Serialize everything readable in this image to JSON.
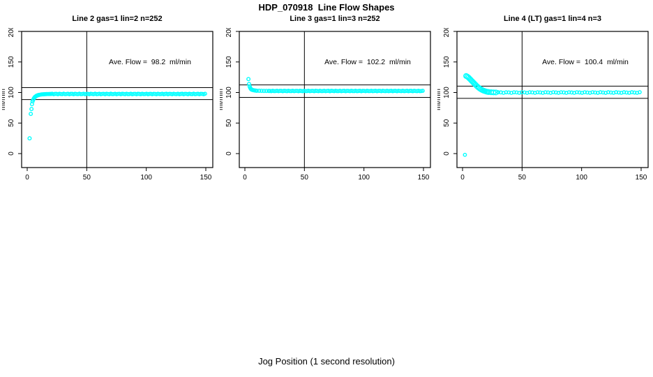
{
  "figure": {
    "title": "HDP_070918  Line Flow Shapes",
    "xlabel": "Jog Position (1 second resolution)",
    "background": "#ffffff"
  },
  "chart_data": [
    {
      "type": "scatter",
      "title": "Line 2 gas=1 lin=2 n=252",
      "annotation": "Ave. Flow =  98.2  ml/min",
      "ave_flow": 98.2,
      "n": 252,
      "ylabel": "ml/min",
      "xticks": [
        0,
        50,
        100,
        150
      ],
      "yticks": [
        0,
        50,
        100,
        150,
        200
      ],
      "xlim": [
        0,
        150
      ],
      "ylim": [
        0,
        200
      ],
      "grid": false,
      "vline_x": 50,
      "ref_lines": [
        108.0,
        88.4
      ],
      "point_color": "#00ffff",
      "transient_r": 2.3,
      "transient": [
        [
          2,
          25
        ],
        [
          3,
          65
        ],
        [
          3.6,
          73
        ],
        [
          4,
          81
        ],
        [
          4.5,
          85.5
        ],
        [
          5,
          88
        ],
        [
          5.5,
          90
        ],
        [
          6,
          91.5
        ],
        [
          6.5,
          92.7
        ],
        [
          7,
          93.5
        ],
        [
          7.5,
          94.2
        ],
        [
          8,
          94.8
        ],
        [
          8.5,
          95.2
        ],
        [
          9,
          95.6
        ],
        [
          9.5,
          95.9
        ],
        [
          10,
          96.1
        ],
        [
          11,
          96.5
        ],
        [
          12,
          96.8
        ],
        [
          13,
          97.0
        ],
        [
          14,
          97.2
        ],
        [
          15,
          97.3
        ],
        [
          16,
          97.4
        ],
        [
          17,
          97.5
        ],
        [
          18,
          97.5
        ],
        [
          19,
          97.6
        ],
        [
          20,
          97.6
        ]
      ],
      "plateau": {
        "from": 21,
        "to": 150,
        "step": 1.2,
        "y": 97.6,
        "amp": 0.45,
        "r": 2.2
      },
      "outliers": []
    },
    {
      "type": "scatter",
      "title": "Line 3 gas=1 lin=3 n=252",
      "annotation": "Ave. Flow =  102.2  ml/min",
      "ave_flow": 102.2,
      "n": 252,
      "ylabel": "ml/min",
      "xticks": [
        0,
        50,
        100,
        150
      ],
      "yticks": [
        0,
        50,
        100,
        150,
        200
      ],
      "xlim": [
        0,
        150
      ],
      "ylim": [
        0,
        200
      ],
      "grid": false,
      "vline_x": 50,
      "ref_lines": [
        112.4,
        92.0
      ],
      "point_color": "#00ffff",
      "transient_r": 2.3,
      "transient": [
        [
          3,
          122
        ],
        [
          3.5,
          114
        ],
        [
          4,
          110
        ],
        [
          4.5,
          107.5
        ],
        [
          5,
          106
        ],
        [
          5.5,
          105
        ],
        [
          6,
          104.4
        ],
        [
          7,
          103.8
        ],
        [
          8,
          103.4
        ],
        [
          9,
          103.1
        ],
        [
          10,
          102.9
        ],
        [
          12,
          102.8
        ],
        [
          14,
          102.7
        ],
        [
          16,
          102.6
        ],
        [
          18,
          102.6
        ],
        [
          20,
          102.6
        ]
      ],
      "plateau": {
        "from": 21,
        "to": 150,
        "step": 1.2,
        "y": 102.5,
        "amp": 0.4,
        "r": 2.2
      },
      "outliers": []
    },
    {
      "type": "scatter",
      "title": "Line 4 (LT) gas=1 lin=4 n=3",
      "annotation": "Ave. Flow =  100.4  ml/min",
      "ave_flow": 100.4,
      "n": 3,
      "ylabel": "ml/min",
      "xticks": [
        0,
        50,
        100,
        150
      ],
      "yticks": [
        0,
        50,
        100,
        150,
        200
      ],
      "xlim": [
        0,
        150
      ],
      "ylim": [
        0,
        200
      ],
      "grid": false,
      "vline_x": 50,
      "ref_lines": [
        110.4,
        90.4
      ],
      "point_color": "#00ffff",
      "transient_r": 3.4,
      "transient": [
        [
          3,
          127
        ],
        [
          4,
          126
        ],
        [
          5,
          124.5
        ],
        [
          6,
          122.5
        ],
        [
          7,
          120.5
        ],
        [
          8,
          118.5
        ],
        [
          9,
          116.5
        ],
        [
          10,
          114.5
        ],
        [
          11,
          112.5
        ],
        [
          12,
          110.5
        ],
        [
          13,
          108.8
        ],
        [
          14,
          107.2
        ],
        [
          15,
          105.8
        ],
        [
          16,
          104.6
        ],
        [
          17,
          103.6
        ],
        [
          18,
          102.8
        ],
        [
          19,
          102.1
        ],
        [
          20,
          101.5
        ],
        [
          21,
          101.0
        ],
        [
          22,
          100.7
        ],
        [
          24,
          100.4
        ],
        [
          26,
          100.2
        ],
        [
          28,
          100.1
        ]
      ],
      "plateau": {
        "from": 30,
        "to": 150,
        "step": 2.2,
        "y": 100.0,
        "amp": 0.55,
        "r": 2.2
      },
      "outliers": [
        [
          2,
          -2
        ]
      ]
    }
  ]
}
